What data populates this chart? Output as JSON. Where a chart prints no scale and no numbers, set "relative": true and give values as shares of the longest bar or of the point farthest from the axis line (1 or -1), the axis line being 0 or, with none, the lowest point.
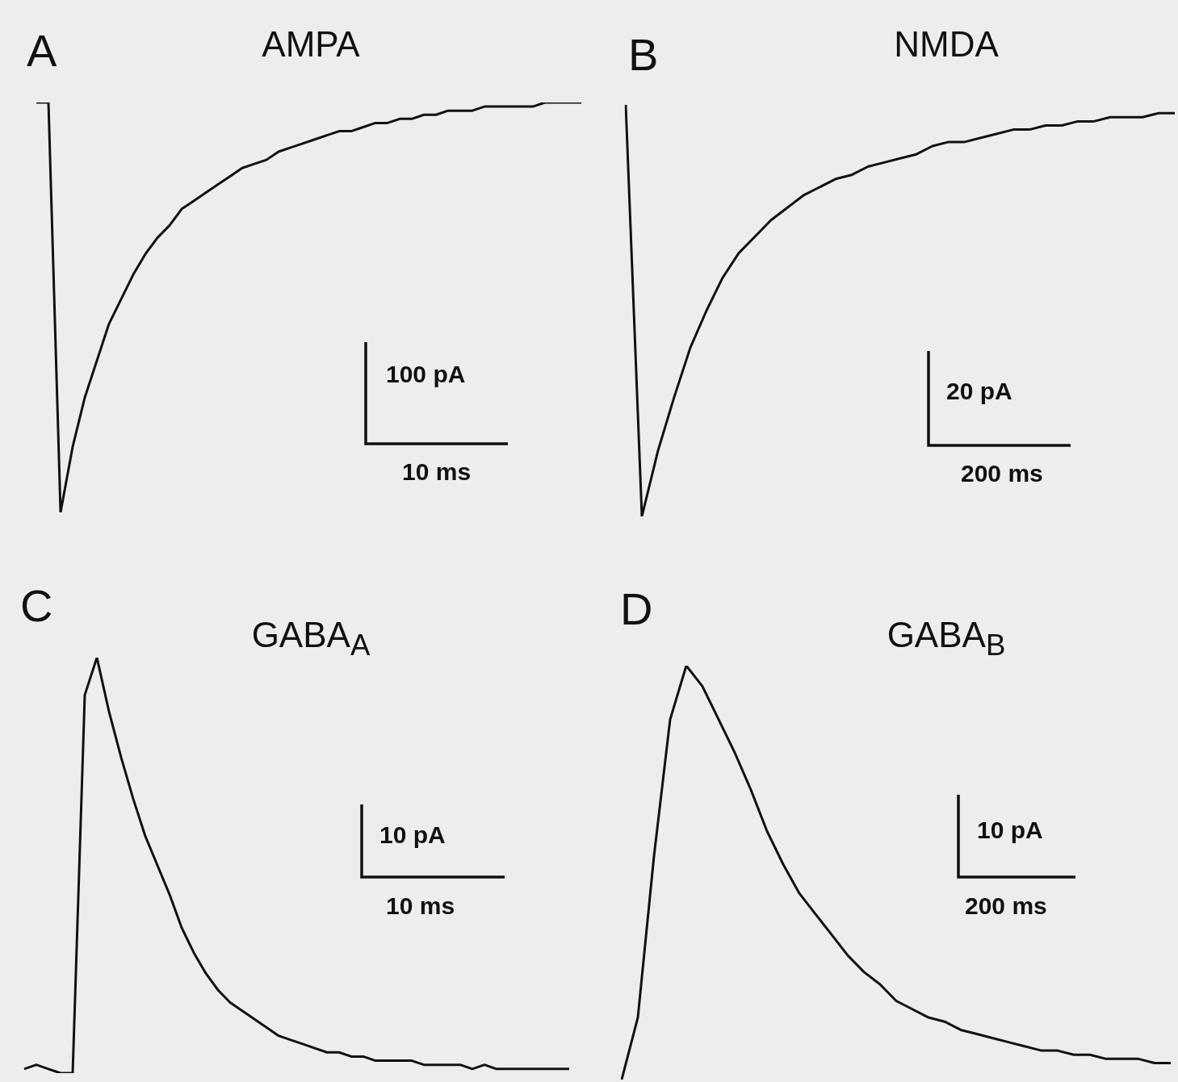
{
  "chart_data": [
    {
      "type": "line",
      "title": "AMPA",
      "annotations": [
        "A",
        "100 pA",
        "10 ms"
      ],
      "relative": true,
      "color": "#111111",
      "categories": [
        null,
        null,
        null,
        null,
        null,
        null,
        null,
        null,
        null,
        null,
        null,
        null,
        null,
        null,
        null,
        null,
        null,
        null,
        null,
        null,
        null,
        null,
        null,
        null,
        null,
        null,
        null,
        null,
        null,
        null,
        null,
        null,
        null,
        null,
        null,
        null,
        null,
        null,
        null,
        null,
        null,
        null,
        null,
        null,
        null,
        null
      ],
      "values": [
        1.0,
        1.0,
        0,
        0.16,
        0.28,
        0.37,
        0.46,
        0.52,
        0.58,
        0.63,
        0.67,
        0.7,
        0.74,
        0.76,
        0.78,
        0.8,
        0.82,
        0.84,
        0.85,
        0.86,
        0.88,
        0.89,
        0.9,
        0.91,
        0.92,
        0.93,
        0.93,
        0.94,
        0.95,
        0.95,
        0.96,
        0.96,
        0.97,
        0.97,
        0.98,
        0.98,
        0.98,
        0.99,
        0.99,
        0.99,
        0.99,
        0.99,
        1.0,
        1.0,
        1.0,
        1.0
      ]
    },
    {
      "type": "line",
      "title": "NMDA",
      "annotations": [
        "B",
        "20 pA",
        "200 ms"
      ],
      "relative": true,
      "color": "#111111",
      "categories": [
        null,
        null,
        null,
        null,
        null,
        null,
        null,
        null,
        null,
        null,
        null,
        null,
        null,
        null,
        null,
        null,
        null,
        null,
        null,
        null,
        null,
        null,
        null,
        null,
        null,
        null,
        null,
        null,
        null,
        null,
        null,
        null,
        null,
        null,
        null
      ],
      "values": [
        1.0,
        0,
        0.16,
        0.29,
        0.41,
        0.5,
        0.58,
        0.64,
        0.68,
        0.72,
        0.75,
        0.78,
        0.8,
        0.82,
        0.83,
        0.85,
        0.86,
        0.87,
        0.88,
        0.9,
        0.91,
        0.91,
        0.92,
        0.93,
        0.94,
        0.94,
        0.95,
        0.95,
        0.96,
        0.96,
        0.97,
        0.97,
        0.97,
        0.98,
        0.98
      ]
    },
    {
      "type": "line",
      "title": "GABA$_{A}$",
      "annotations": [
        "C",
        "10 pA",
        "10 ms"
      ],
      "relative": true,
      "color": "#111111",
      "categories": [
        null,
        null,
        null,
        null,
        null,
        null,
        null,
        null,
        null,
        null,
        null,
        null,
        null,
        null,
        null,
        null,
        null,
        null,
        null,
        null,
        null,
        null,
        null,
        null,
        null,
        null,
        null,
        null,
        null,
        null,
        null,
        null,
        null,
        null,
        null,
        null,
        null,
        null,
        null,
        null,
        null,
        null,
        null,
        null,
        null,
        null
      ],
      "values": [
        0.01,
        0.02,
        0.01,
        0.0,
        0,
        0.91,
        1.0,
        0.87,
        0.76,
        0.66,
        0.57,
        0.5,
        0.43,
        0.35,
        0.29,
        0.24,
        0.2,
        0.17,
        0.15,
        0.13,
        0.11,
        0.09,
        0.08,
        0.07,
        0.06,
        0.05,
        0.05,
        0.04,
        0.04,
        0.03,
        0.03,
        0.03,
        0.03,
        0.02,
        0.02,
        0.02,
        0.02,
        0.01,
        0.02,
        0.01,
        0.01,
        0.01,
        0.01,
        0.01,
        0.01,
        0.01
      ]
    },
    {
      "type": "line",
      "title": "GABA$_{B}$",
      "annotations": [
        "D",
        "10 pA",
        "200 ms"
      ],
      "relative": true,
      "color": "#111111",
      "categories": [
        null,
        null,
        null,
        null,
        null,
        null,
        null,
        null,
        null,
        null,
        null,
        null,
        null,
        null,
        null,
        null,
        null,
        null,
        null,
        null,
        null,
        null,
        null,
        null,
        null,
        null,
        null,
        null,
        null,
        null,
        null,
        null,
        null,
        null,
        null
      ],
      "values": [
        0,
        0.15,
        0.54,
        0.87,
        1.0,
        0.95,
        0.87,
        0.79,
        0.7,
        0.6,
        0.52,
        0.45,
        0.4,
        0.35,
        0.3,
        0.26,
        0.23,
        0.19,
        0.17,
        0.15,
        0.14,
        0.12,
        0.11,
        0.1,
        0.09,
        0.08,
        0.07,
        0.07,
        0.06,
        0.06,
        0.05,
        0.05,
        0.05,
        0.04,
        0.04
      ]
    }
  ]
}
